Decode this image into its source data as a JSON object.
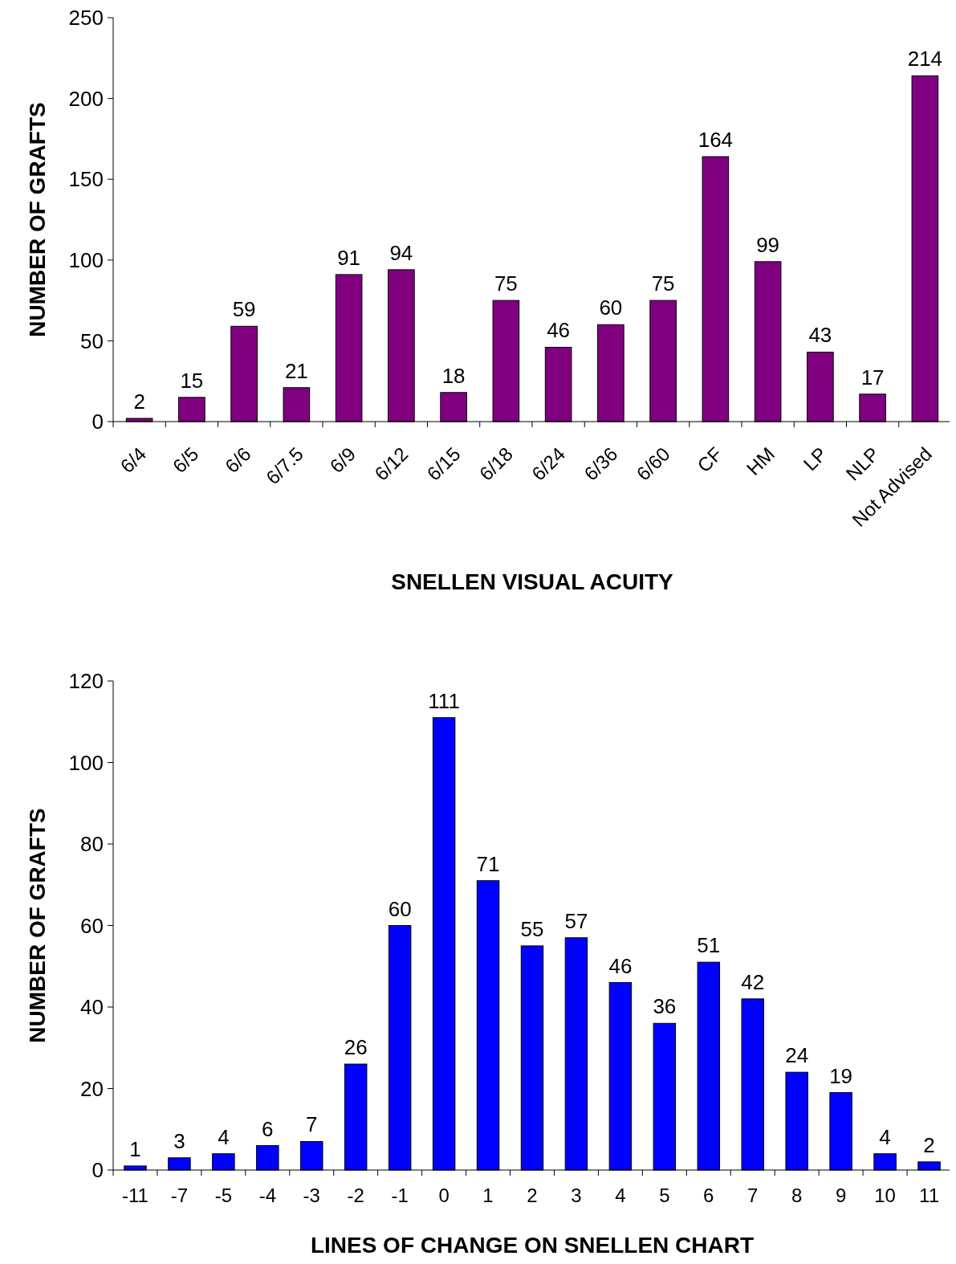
{
  "chart_data": [
    {
      "type": "bar",
      "xlabel": "SNELLEN VISUAL ACUITY",
      "ylabel": "NUMBER OF GRAFTS",
      "categories": [
        "6/4",
        "6/5",
        "6/6",
        "6/7.5",
        "6/9",
        "6/12",
        "6/15",
        "6/18",
        "6/24",
        "6/36",
        "6/60",
        "CF",
        "HM",
        "LP",
        "NLP",
        "Not Advised"
      ],
      "values": [
        2,
        15,
        59,
        21,
        91,
        94,
        18,
        75,
        46,
        60,
        75,
        164,
        99,
        43,
        17,
        214
      ],
      "color": "#800080",
      "ylim": [
        0,
        250
      ],
      "yticks": [
        0,
        50,
        100,
        150,
        200,
        250
      ],
      "data_labels": true
    },
    {
      "type": "bar",
      "xlabel": "LINES OF CHANGE ON SNELLEN CHART",
      "ylabel": "NUMBER OF GRAFTS",
      "categories": [
        "-11",
        "-7",
        "-5",
        "-4",
        "-3",
        "-2",
        "-1",
        "0",
        "1",
        "2",
        "3",
        "4",
        "5",
        "6",
        "7",
        "8",
        "9",
        "10",
        "11"
      ],
      "values": [
        1,
        3,
        4,
        6,
        7,
        26,
        60,
        111,
        71,
        55,
        57,
        46,
        36,
        51,
        42,
        24,
        19,
        4,
        2
      ],
      "color": "#0000ff",
      "ylim": [
        0,
        120
      ],
      "yticks": [
        0,
        20,
        40,
        60,
        80,
        100,
        120
      ],
      "data_labels": true
    }
  ]
}
